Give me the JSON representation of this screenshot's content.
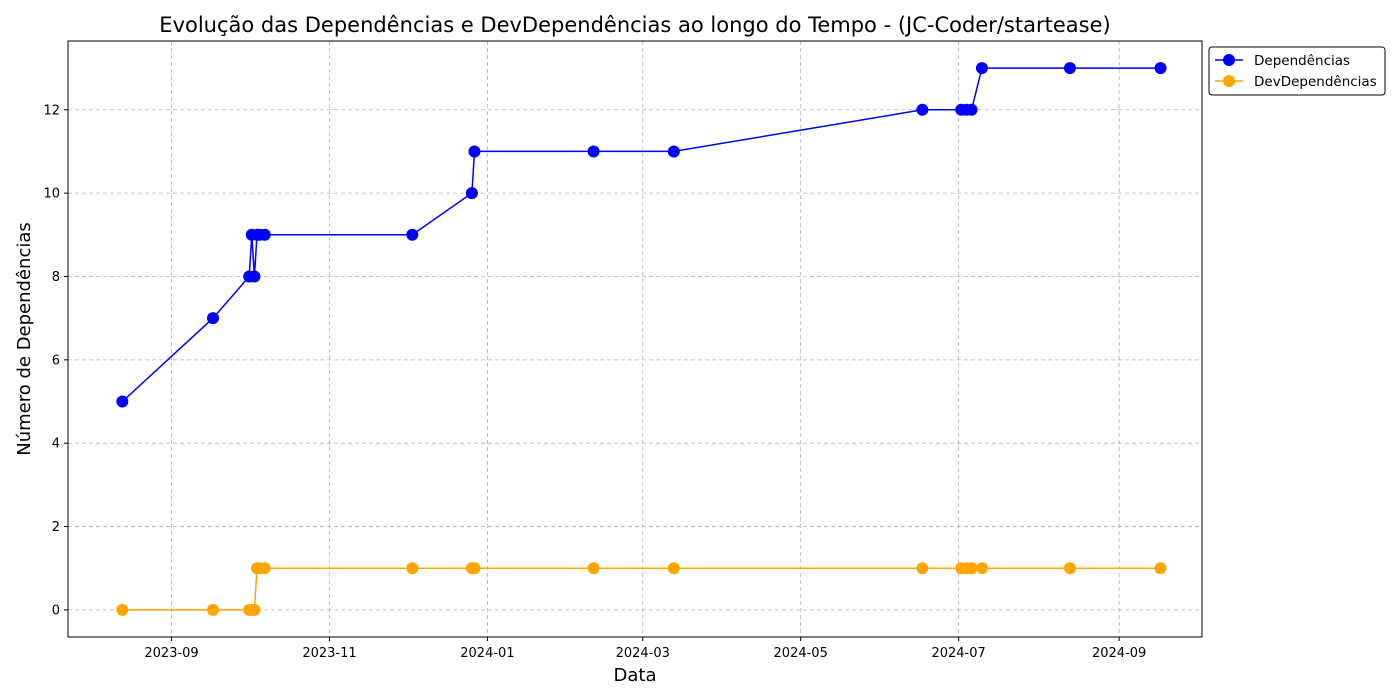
{
  "chart_data": {
    "type": "line",
    "title": "Evolução das Dependências e DevDependências ao longo do Tempo - (JC-Coder/startease)",
    "xlabel": "Data",
    "ylabel": "Número de Dependências",
    "x_tick_labels": [
      "2023-09",
      "2023-11",
      "2024-01",
      "2024-03",
      "2024-05",
      "2024-07",
      "2024-09"
    ],
    "x_ticks": [
      "2023-09-01",
      "2023-11-01",
      "2024-01-01",
      "2024-03-01",
      "2024-05-01",
      "2024-07-01",
      "2024-09-01"
    ],
    "y_ticks": [
      0,
      2,
      4,
      6,
      8,
      10,
      12
    ],
    "xlim": [
      "2023-07-23",
      "2024-10-03"
    ],
    "ylim": [
      -0.65,
      13.65
    ],
    "grid": true,
    "legend_position": "outside-top-right",
    "x": [
      "2023-08-13",
      "2023-09-17",
      "2023-10-01",
      "2023-10-02",
      "2023-10-03",
      "2023-10-04",
      "2023-10-05",
      "2023-10-07",
      "2023-12-03",
      "2023-12-26",
      "2023-12-27",
      "2024-02-11",
      "2024-03-13",
      "2024-06-17",
      "2024-07-02",
      "2024-07-04",
      "2024-07-06",
      "2024-07-10",
      "2024-08-13",
      "2024-09-17"
    ],
    "series": [
      {
        "name": "Dependências",
        "color": "#0000ff",
        "values": [
          5,
          7,
          8,
          9,
          8,
          9,
          9,
          9,
          9,
          10,
          11,
          11,
          11,
          12,
          12,
          12,
          12,
          13,
          13,
          13
        ]
      },
      {
        "name": "DevDependências",
        "color": "#ffa500",
        "values": [
          0,
          0,
          0,
          0,
          0,
          1,
          1,
          1,
          1,
          1,
          1,
          1,
          1,
          1,
          1,
          1,
          1,
          1,
          1,
          1
        ]
      }
    ]
  }
}
